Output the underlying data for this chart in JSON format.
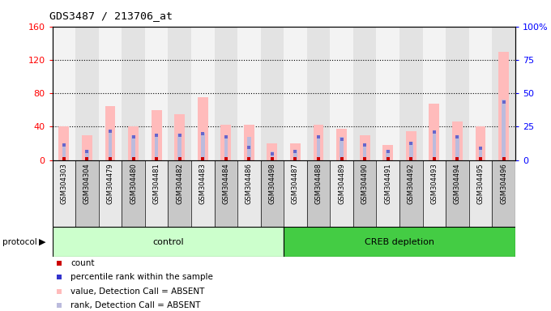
{
  "title": "GDS3487 / 213706_at",
  "samples": [
    "GSM304303",
    "GSM304304",
    "GSM304479",
    "GSM304480",
    "GSM304481",
    "GSM304482",
    "GSM304483",
    "GSM304484",
    "GSM304486",
    "GSM304498",
    "GSM304487",
    "GSM304488",
    "GSM304489",
    "GSM304490",
    "GSM304491",
    "GSM304492",
    "GSM304493",
    "GSM304494",
    "GSM304495",
    "GSM304496"
  ],
  "group_labels": [
    "control",
    "CREB depletion"
  ],
  "group_sizes": [
    10,
    10
  ],
  "value_absent": [
    40,
    30,
    65,
    40,
    60,
    55,
    75,
    42,
    42,
    20,
    20,
    42,
    38,
    30,
    18,
    35,
    68,
    46,
    40,
    130
  ],
  "rank_absent": [
    18,
    12,
    36,
    30,
    32,
    32,
    33,
    30,
    28,
    10,
    12,
    30,
    28,
    18,
    12,
    22,
    35,
    30,
    15,
    72
  ],
  "count_val": [
    2,
    2,
    2,
    2,
    2,
    2,
    2,
    2,
    2,
    2,
    2,
    2,
    2,
    2,
    2,
    2,
    2,
    2,
    2,
    2
  ],
  "rank_val": [
    18,
    10,
    35,
    28,
    30,
    30,
    32,
    28,
    15,
    8,
    10,
    28,
    25,
    18,
    10,
    20,
    34,
    28,
    14,
    70
  ],
  "ylim_left": [
    0,
    160
  ],
  "ylim_right": [
    0,
    100
  ],
  "yticks_left": [
    0,
    40,
    80,
    120,
    160
  ],
  "yticks_right": [
    0,
    25,
    50,
    75,
    100
  ],
  "ytick_labels_right": [
    "0",
    "25",
    "50",
    "75",
    "100%"
  ],
  "color_count": "#cc0000",
  "color_rank": "#6666cc",
  "color_value_absent": "#ffbbbb",
  "color_rank_absent": "#bbbbdd",
  "color_bg_plot": "#ffffff",
  "color_col_light": "#e8e8e8",
  "color_col_dark": "#c8c8c8",
  "color_control_bg": "#ccffcc",
  "color_creb_bg": "#44cc44",
  "legend_items": [
    [
      "#cc0000",
      "count"
    ],
    [
      "#3333cc",
      "percentile rank within the sample"
    ],
    [
      "#ffbbbb",
      "value, Detection Call = ABSENT"
    ],
    [
      "#bbbbdd",
      "rank, Detection Call = ABSENT"
    ]
  ]
}
